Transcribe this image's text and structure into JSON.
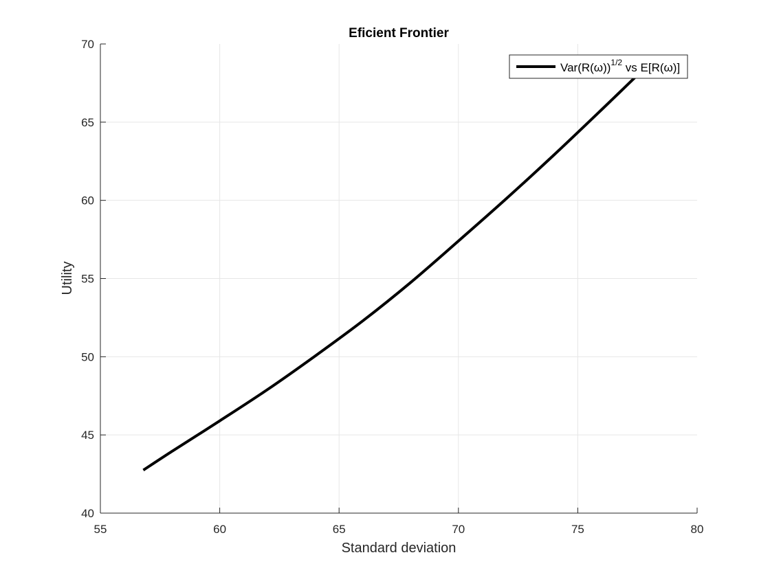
{
  "chart_data": {
    "type": "line",
    "title": "Eficient Frontier",
    "xlabel": "Standard deviation",
    "ylabel": "Utility",
    "xlim": [
      55,
      80
    ],
    "ylim": [
      40,
      70
    ],
    "xticks": [
      55,
      60,
      65,
      70,
      75,
      80
    ],
    "yticks": [
      40,
      45,
      50,
      55,
      60,
      65,
      70
    ],
    "grid": true,
    "legend_position": "top-right",
    "series": [
      {
        "name": "Var(R(ω))^{1/2} vs E[R(ω)]",
        "legend_parts": {
          "pre": "Var(R(ω))",
          "sup": "1/2",
          "post": " vs E[R(ω)]"
        },
        "color": "#000000",
        "x": [
          56.8,
          58.0,
          60.0,
          62.0,
          64.0,
          66.0,
          68.0,
          70.0,
          72.0,
          74.0,
          76.0,
          77.9
        ],
        "y": [
          42.75,
          43.95,
          45.9,
          47.9,
          50.05,
          52.3,
          54.75,
          57.4,
          60.1,
          62.9,
          65.8,
          68.6
        ]
      }
    ]
  }
}
